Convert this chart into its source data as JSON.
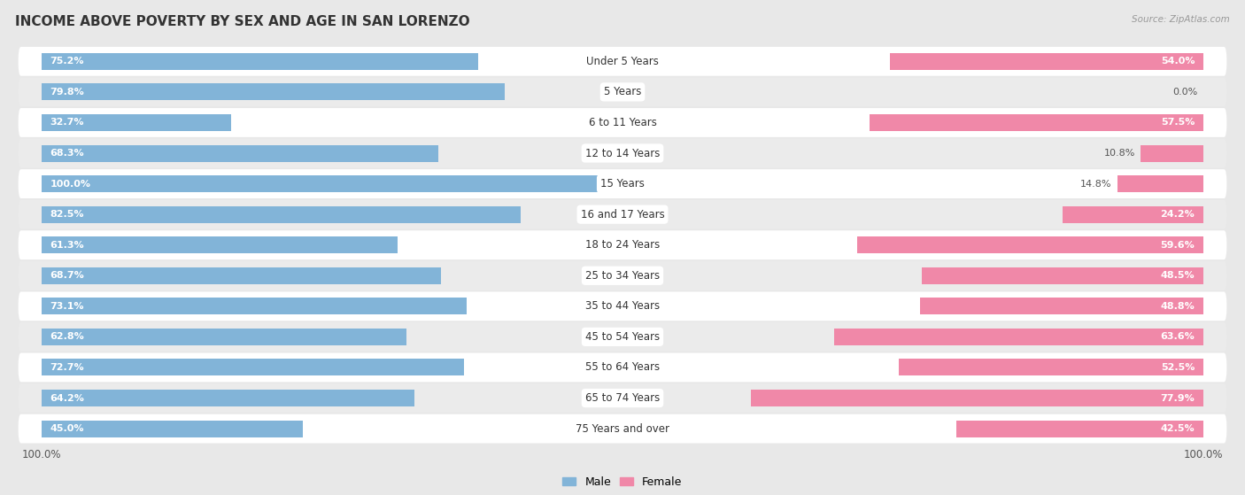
{
  "title": "INCOME ABOVE POVERTY BY SEX AND AGE IN SAN LORENZO",
  "source": "Source: ZipAtlas.com",
  "categories": [
    "Under 5 Years",
    "5 Years",
    "6 to 11 Years",
    "12 to 14 Years",
    "15 Years",
    "16 and 17 Years",
    "18 to 24 Years",
    "25 to 34 Years",
    "35 to 44 Years",
    "45 to 54 Years",
    "55 to 64 Years",
    "65 to 74 Years",
    "75 Years and over"
  ],
  "male_values": [
    75.2,
    79.8,
    32.7,
    68.3,
    100.0,
    82.5,
    61.3,
    68.7,
    73.1,
    62.8,
    72.7,
    64.2,
    45.0
  ],
  "female_values": [
    54.0,
    0.0,
    57.5,
    10.8,
    14.8,
    24.2,
    59.6,
    48.5,
    48.8,
    63.6,
    52.5,
    77.9,
    42.5
  ],
  "male_color": "#82b4d8",
  "female_color": "#f088a8",
  "male_label": "Male",
  "female_label": "Female",
  "bg_color": "#e8e8e8",
  "row_bg_white": "#ffffff",
  "row_bg_gray": "#ebebeb",
  "title_fontsize": 11,
  "label_fontsize": 8.5,
  "value_fontsize": 8,
  "source_fontsize": 7.5
}
